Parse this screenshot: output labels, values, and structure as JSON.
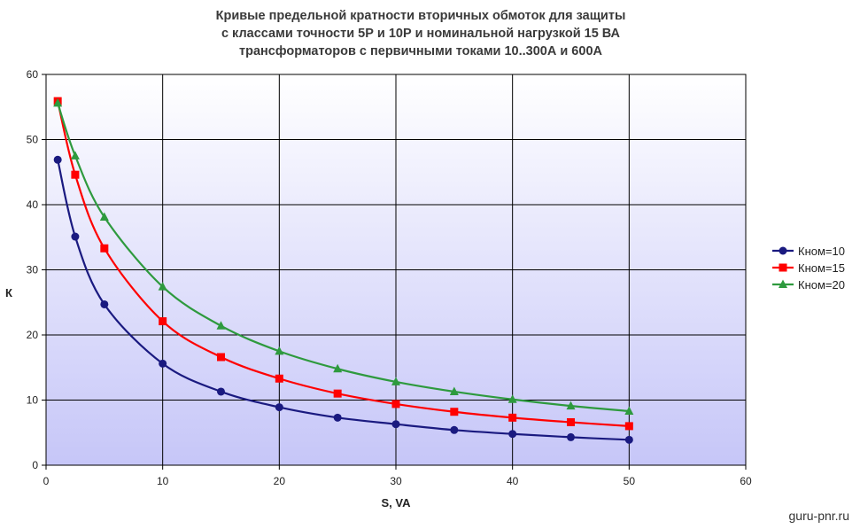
{
  "chart_data": {
    "type": "line",
    "title_lines": [
      "Кривые предельной кратности вторичных обмоток для защиты",
      "с классами точности 5Р и 10Р и номинальной нагрузкой 15 ВА",
      "трансформаторов с первичными токами 10..300А и 600А"
    ],
    "xlabel": "S, VA",
    "ylabel": "К",
    "xlim": [
      0,
      60
    ],
    "ylim": [
      0,
      60
    ],
    "xticks": [
      "0",
      "10",
      "20",
      "30",
      "40",
      "50",
      "60"
    ],
    "yticks": [
      "0",
      "10",
      "20",
      "30",
      "40",
      "50",
      "60"
    ],
    "grid": true,
    "legend_position": "right",
    "series": [
      {
        "name": "Кном=10",
        "color": "#1a1a80",
        "marker": "circle",
        "x": [
          1,
          2.5,
          5,
          10,
          15,
          20,
          25,
          30,
          35,
          40,
          45,
          50
        ],
        "y": [
          46.9,
          35.1,
          24.7,
          15.6,
          11.3,
          8.9,
          7.3,
          6.3,
          5.4,
          4.8,
          4.3,
          3.9
        ]
      },
      {
        "name": "Кном=15",
        "color": "#ff0000",
        "marker": "square",
        "x": [
          1,
          2.5,
          5,
          10,
          15,
          20,
          25,
          30,
          35,
          40,
          45,
          50
        ],
        "y": [
          55.9,
          44.6,
          33.3,
          22.1,
          16.6,
          13.3,
          11.0,
          9.4,
          8.2,
          7.3,
          6.6,
          6.0
        ]
      },
      {
        "name": "Кном=20",
        "color": "#2e9a3e",
        "marker": "triangle",
        "x": [
          1,
          2.5,
          5,
          10,
          15,
          20,
          25,
          30,
          35,
          40,
          45,
          50
        ],
        "y": [
          55.6,
          47.5,
          38.1,
          27.4,
          21.4,
          17.5,
          14.8,
          12.8,
          11.3,
          10.1,
          9.1,
          8.3
        ]
      }
    ]
  },
  "watermark": "guru-pnr.ru"
}
